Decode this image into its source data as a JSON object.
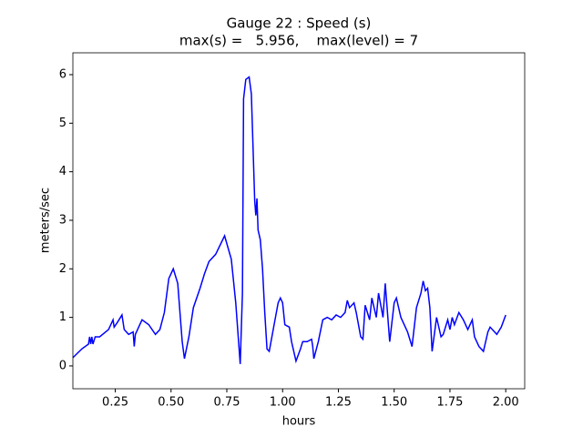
{
  "chart_data": {
    "type": "line",
    "title": "Gauge 22 : Speed (s)",
    "subtitle": "max(s) =   5.956,    max(level) = 7",
    "xlabel": "hours",
    "ylabel": "meters/sec",
    "xlim": [
      0.06,
      2.085
    ],
    "ylim": [
      -0.47,
      6.45
    ],
    "xticks": [
      0.25,
      {
        "value": 0.5,
        "label": "0.50"
      },
      0.75,
      {
        "value": 1,
        "label": "1.00"
      },
      1.25,
      {
        "value": 1.5,
        "label": "1.50"
      },
      1.75,
      {
        "value": 2,
        "label": "2.00"
      }
    ],
    "yticks": [
      0,
      1,
      2,
      3,
      4,
      5,
      6
    ],
    "x": [
      0.06,
      0.1,
      0.13,
      0.135,
      0.14,
      0.145,
      0.15,
      0.16,
      0.18,
      0.22,
      0.24,
      0.245,
      0.26,
      0.28,
      0.29,
      0.31,
      0.33,
      0.335,
      0.34,
      0.36,
      0.37,
      0.4,
      0.43,
      0.45,
      0.47,
      0.49,
      0.51,
      0.53,
      0.55,
      0.56,
      0.58,
      0.6,
      0.63,
      0.65,
      0.67,
      0.7,
      0.74,
      0.77,
      0.79,
      0.81,
      0.82,
      0.825,
      0.835,
      0.85,
      0.86,
      0.875,
      0.88,
      0.885,
      0.89,
      0.9,
      0.91,
      0.92,
      0.93,
      0.94,
      0.96,
      0.98,
      0.99,
      1.0,
      1.01,
      1.03,
      1.04,
      1.06,
      1.08,
      1.09,
      1.11,
      1.13,
      1.135,
      1.14,
      1.16,
      1.18,
      1.2,
      1.22,
      1.24,
      1.26,
      1.28,
      1.29,
      1.3,
      1.32,
      1.33,
      1.35,
      1.36,
      1.37,
      1.39,
      1.4,
      1.42,
      1.43,
      1.45,
      1.46,
      1.47,
      1.48,
      1.5,
      1.51,
      1.53,
      1.55,
      1.56,
      1.58,
      1.6,
      1.62,
      1.63,
      1.64,
      1.65,
      1.66,
      1.67,
      1.69,
      1.71,
      1.72,
      1.74,
      1.75,
      1.76,
      1.77,
      1.79,
      1.81,
      1.83,
      1.85,
      1.86,
      1.88,
      1.9,
      1.92,
      1.93,
      1.96,
      1.98,
      2.0
    ],
    "series": [
      {
        "name": "speed",
        "color": "#0000ff",
        "values": [
          0.17,
          0.35,
          0.45,
          0.6,
          0.45,
          0.6,
          0.45,
          0.6,
          0.6,
          0.75,
          0.95,
          0.8,
          0.9,
          1.05,
          0.75,
          0.65,
          0.7,
          0.4,
          0.65,
          0.85,
          0.95,
          0.85,
          0.65,
          0.75,
          1.1,
          1.8,
          2.0,
          1.7,
          0.5,
          0.15,
          0.6,
          1.2,
          1.6,
          1.9,
          2.15,
          2.3,
          2.68,
          2.2,
          1.3,
          0.04,
          1.5,
          5.5,
          5.9,
          5.95,
          5.6,
          3.4,
          3.1,
          3.45,
          2.8,
          2.6,
          2.0,
          1.1,
          0.35,
          0.3,
          0.8,
          1.3,
          1.4,
          1.3,
          0.85,
          0.8,
          0.5,
          0.1,
          0.35,
          0.5,
          0.5,
          0.55,
          0.4,
          0.15,
          0.5,
          0.95,
          1.0,
          0.95,
          1.05,
          1.0,
          1.1,
          1.35,
          1.2,
          1.3,
          1.1,
          0.6,
          0.55,
          1.25,
          0.95,
          1.4,
          1.0,
          1.5,
          1.0,
          1.7,
          1.1,
          0.5,
          1.3,
          1.4,
          1.0,
          0.8,
          0.7,
          0.4,
          1.2,
          1.5,
          1.75,
          1.55,
          1.6,
          1.2,
          0.3,
          1.0,
          0.6,
          0.65,
          0.95,
          0.75,
          1.0,
          0.85,
          1.1,
          0.95,
          0.75,
          0.95,
          0.6,
          0.4,
          0.3,
          0.7,
          0.8,
          0.65,
          0.8,
          1.05
        ]
      }
    ]
  }
}
